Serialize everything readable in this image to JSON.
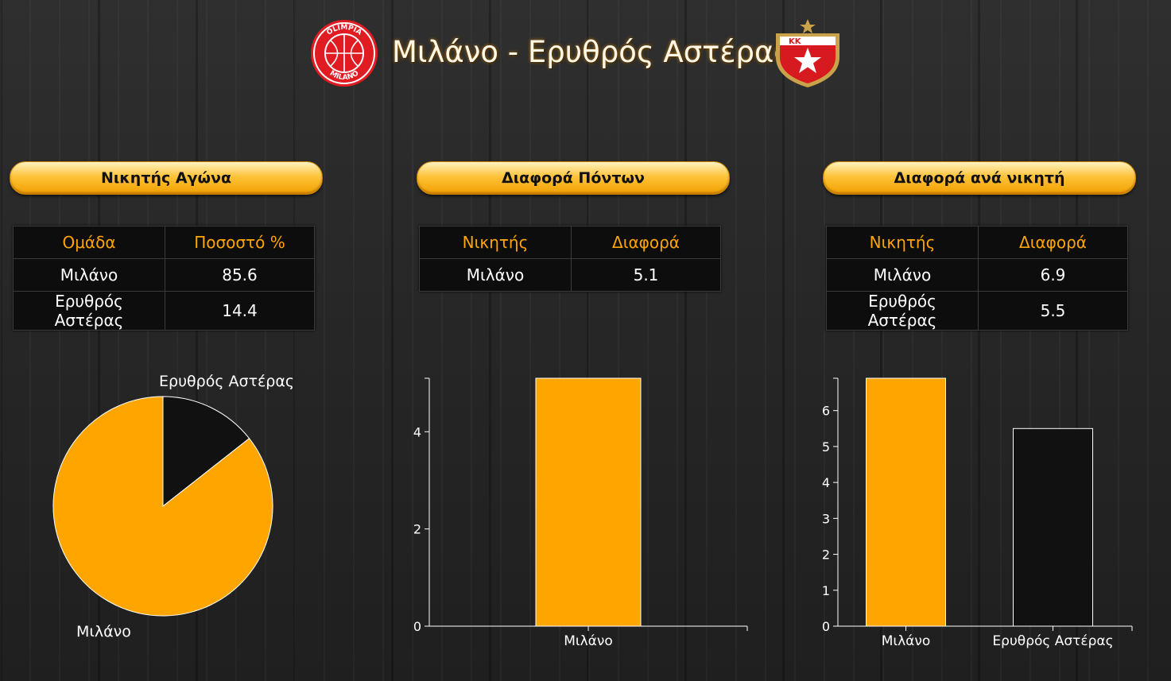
{
  "header": {
    "title": "Μιλάνο - Ερυθρός Αστέρας",
    "home_logo_text": [
      "OLIMPIA",
      "MILANO"
    ],
    "away_logo_text": "KK"
  },
  "panels": [
    {
      "heading": "Νικητής Αγώνα",
      "table": {
        "columns": [
          "Ομάδα",
          "Ποσοστό %"
        ],
        "rows": [
          [
            "Μιλάνο",
            "85.6"
          ],
          [
            "Ερυθρός Αστέρας",
            "14.4"
          ]
        ]
      }
    },
    {
      "heading": "Διαφορά Πόντων",
      "table": {
        "columns": [
          "Νικητής",
          "Διαφορά"
        ],
        "rows": [
          [
            "Μιλάνο",
            "5.1"
          ]
        ]
      }
    },
    {
      "heading": "Διαφορά ανά νικητή",
      "table": {
        "columns": [
          "Νικητής",
          "Διαφορά"
        ],
        "rows": [
          [
            "Μιλάνο",
            "6.9"
          ],
          [
            "Ερυθρός Αστέρας",
            "5.5"
          ]
        ]
      }
    }
  ],
  "colors": {
    "accent": "#ffa500",
    "dark": "#111111",
    "header_text": "#ffa500"
  },
  "chart_data": [
    {
      "type": "pie",
      "categories": [
        "Ερυθρός Αστέρας",
        "Μιλάνο"
      ],
      "values": [
        14.4,
        85.6
      ],
      "colors": [
        "#111111",
        "#ffa500"
      ]
    },
    {
      "type": "bar",
      "categories": [
        "Μιλάνο"
      ],
      "values": [
        5.1
      ],
      "colors": [
        "#ffa500"
      ],
      "ylim": [
        0,
        5.1
      ],
      "yticks": [
        0,
        2,
        4
      ]
    },
    {
      "type": "bar",
      "categories": [
        "Μιλάνο",
        "Ερυθρός Αστέρας"
      ],
      "values": [
        6.9,
        5.5
      ],
      "colors": [
        "#ffa500",
        "#111111"
      ],
      "ylim": [
        0,
        6.9
      ],
      "yticks": [
        0,
        1,
        2,
        3,
        4,
        5,
        6
      ]
    }
  ]
}
